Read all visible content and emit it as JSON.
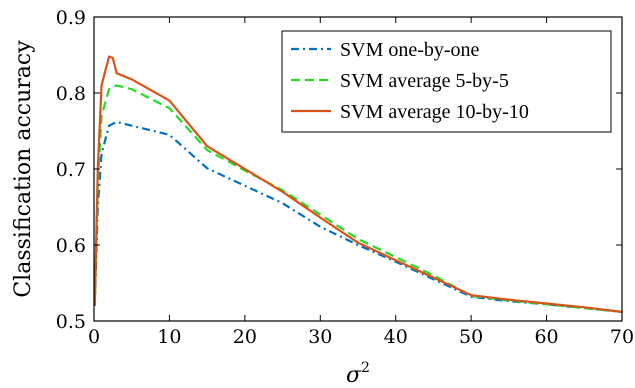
{
  "chart_data": {
    "type": "line",
    "xlabel": "σ",
    "xlabel_sup": "2",
    "ylabel": "Classification accuracy",
    "xlim": [
      0,
      70
    ],
    "ylim": [
      0.5,
      0.9
    ],
    "xticks": [
      0,
      10,
      20,
      30,
      40,
      50,
      60,
      70
    ],
    "xtick_labels": [
      "0",
      "10",
      "20",
      "30",
      "40",
      "50",
      "60",
      "70"
    ],
    "yticks": [
      0.5,
      0.6,
      0.7,
      0.8,
      0.9
    ],
    "ytick_labels": [
      "0.5",
      "0.6",
      "0.7",
      "0.8",
      "0.9"
    ],
    "grid": false,
    "legend_position": "top-right",
    "series": [
      {
        "name": "SVM one-by-one",
        "color": "#0072BD",
        "dash": "dash-dot",
        "x": [
          0.1,
          0.5,
          1,
          2,
          3,
          5,
          10,
          15,
          20,
          25,
          30,
          35,
          40,
          45,
          50,
          55,
          60,
          65,
          70
        ],
        "y": [
          0.52,
          0.65,
          0.72,
          0.757,
          0.762,
          0.757,
          0.745,
          0.701,
          0.678,
          0.655,
          0.624,
          0.6,
          0.578,
          0.555,
          0.532,
          0.526,
          0.522,
          0.517,
          0.512
        ]
      },
      {
        "name": "SVM average 5-by-5",
        "color": "#22DD22",
        "dash": "dashed",
        "x": [
          0.1,
          0.5,
          1,
          2,
          3,
          5,
          10,
          15,
          20,
          25,
          30,
          35,
          40,
          45,
          50,
          55,
          60,
          65,
          70
        ],
        "y": [
          0.52,
          0.68,
          0.77,
          0.805,
          0.81,
          0.805,
          0.78,
          0.725,
          0.698,
          0.672,
          0.64,
          0.608,
          0.584,
          0.56,
          0.533,
          0.527,
          0.522,
          0.517,
          0.512
        ]
      },
      {
        "name": "SVM average 10-by-10",
        "color": "#D95319",
        "dash": "solid",
        "x": [
          0.1,
          0.5,
          1,
          2,
          2.5,
          3,
          5,
          10,
          15,
          20,
          25,
          30,
          35,
          40,
          45,
          50,
          55,
          60,
          65,
          70
        ],
        "y": [
          0.52,
          0.7,
          0.81,
          0.848,
          0.846,
          0.826,
          0.818,
          0.79,
          0.73,
          0.7,
          0.67,
          0.636,
          0.603,
          0.58,
          0.557,
          0.534,
          0.528,
          0.523,
          0.518,
          0.512
        ]
      }
    ]
  }
}
